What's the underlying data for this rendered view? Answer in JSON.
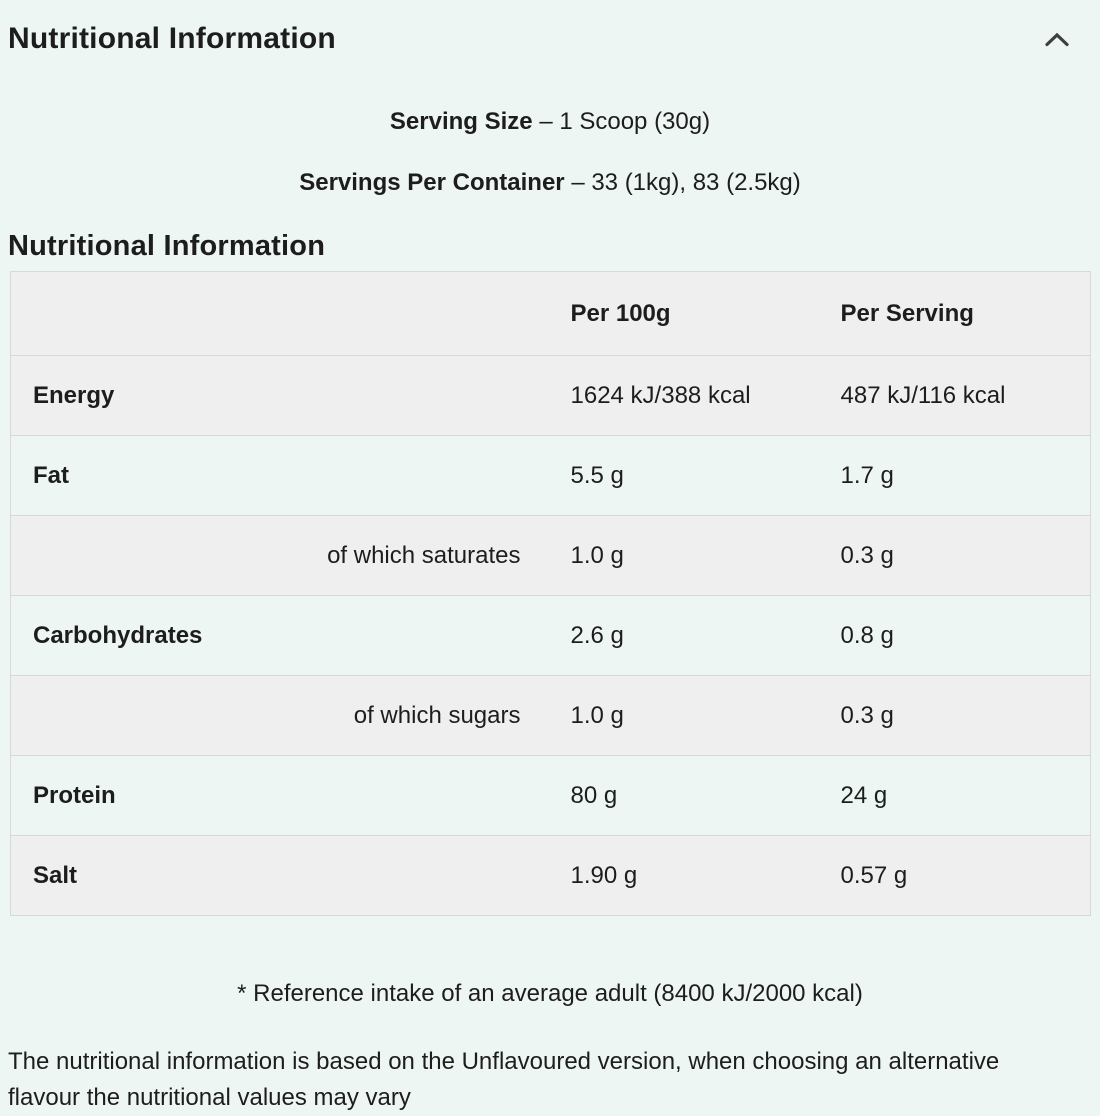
{
  "header": {
    "title": "Nutritional Information",
    "collapse_icon": "chevron-up"
  },
  "serving": {
    "size_label": "Serving Size",
    "size_value": "– 1 Scoop (30g)",
    "container_label": "Servings Per Container",
    "container_value": "– 33 (1kg), 83 (2.5kg)"
  },
  "section_title": "Nutritional Information",
  "table": {
    "columns": [
      "",
      "Per 100g",
      "Per Serving"
    ],
    "rows": [
      {
        "label": "Energy",
        "indent": false,
        "per_100g": "1624 kJ/388 kcal",
        "per_serving": "487 kJ/116 kcal"
      },
      {
        "label": "Fat",
        "indent": false,
        "per_100g": "5.5 g",
        "per_serving": "1.7 g"
      },
      {
        "label": "of which saturates",
        "indent": true,
        "per_100g": "1.0 g",
        "per_serving": "0.3 g"
      },
      {
        "label": "Carbohydrates",
        "indent": false,
        "per_100g": "2.6 g",
        "per_serving": "0.8 g"
      },
      {
        "label": "of which sugars",
        "indent": true,
        "per_100g": "1.0 g",
        "per_serving": "0.3 g"
      },
      {
        "label": "Protein",
        "indent": false,
        "per_100g": "80 g",
        "per_serving": "24 g"
      },
      {
        "label": "Salt",
        "indent": false,
        "per_100g": "1.90 g",
        "per_serving": "0.57 g"
      }
    ]
  },
  "footnote": "* Reference intake of an average adult (8400 kJ/2000 kcal)",
  "disclaimer": "The nutritional information is based on the Unflavoured version, when choosing an alternative flavour the nutritional values may vary",
  "colors": {
    "page_background": "#eef6f3",
    "striped_row": "#f0eff0",
    "table_border": "#d8d8d8",
    "text": "#1d1d1d",
    "icon": "#3f3f3f"
  }
}
